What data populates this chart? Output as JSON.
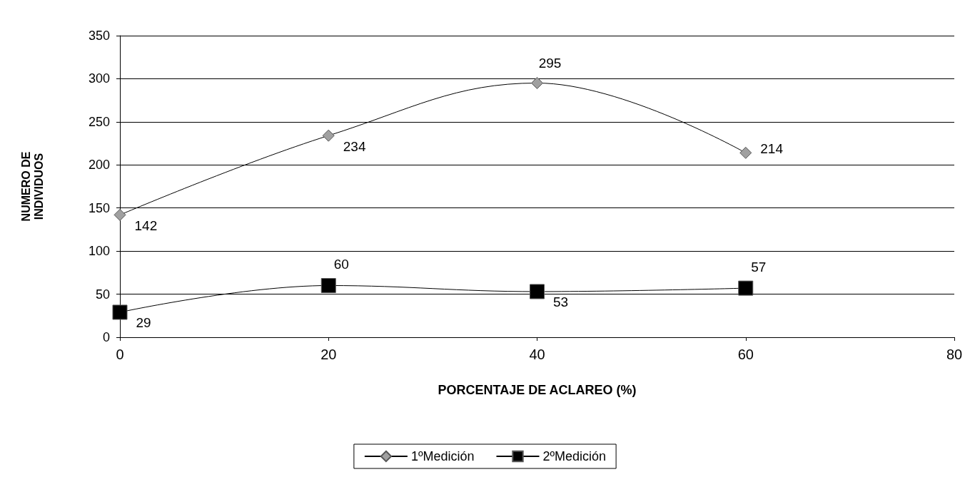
{
  "chart_data": {
    "type": "line",
    "xlabel": "PORCENTAJE DE ACLAREO (%)",
    "ylabel": "NUMERO DE\nINDIVIDUOS",
    "x": [
      0,
      20,
      40,
      60
    ],
    "series": [
      {
        "name": "1ºMedición",
        "color": "#a0a0a0",
        "marker": "diamond",
        "values": [
          142,
          234,
          295,
          214
        ]
      },
      {
        "name": "2ºMedición",
        "color": "#000000",
        "marker": "square",
        "values": [
          29,
          60,
          53,
          57
        ]
      }
    ],
    "xlim": [
      0,
      80
    ],
    "xticks": [
      0,
      20,
      40,
      60,
      80
    ],
    "ylim": [
      0,
      350
    ],
    "yticks": [
      0,
      50,
      100,
      150,
      200,
      250,
      300,
      350
    ],
    "grid": "y",
    "legend": "bottom",
    "data_labels": true
  }
}
